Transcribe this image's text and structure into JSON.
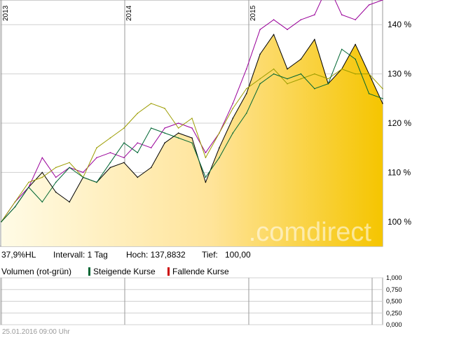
{
  "chart_data": {
    "type": "line",
    "year_labels": [
      "2013",
      "2014",
      "2015"
    ],
    "y_ticks": [
      "100 %",
      "110 %",
      "120 %",
      "130 %",
      "140 %"
    ],
    "y_values": [
      100,
      110,
      120,
      130,
      140
    ],
    "ylim": [
      95,
      145
    ],
    "grid": true,
    "watermark": ".comdirect",
    "series": [
      {
        "color": "#000000",
        "values": [
          100,
          103,
          107,
          110,
          106,
          104,
          109,
          108,
          111,
          112,
          109,
          111,
          116,
          118,
          117,
          108,
          115,
          121,
          126,
          134,
          138,
          131,
          133,
          137,
          128,
          131,
          136,
          130,
          124
        ]
      },
      {
        "color": "#990099",
        "values": [
          100,
          104,
          107,
          113,
          109,
          111,
          110,
          113,
          114,
          113,
          116,
          115,
          119,
          120,
          119,
          114,
          118,
          124,
          131,
          139,
          141,
          139,
          141,
          142,
          148,
          142,
          141,
          144,
          145
        ]
      },
      {
        "color": "#9c9c00",
        "values": [
          100,
          104,
          108,
          109,
          111,
          112,
          109,
          115,
          117,
          119,
          122,
          124,
          123,
          119,
          121,
          113,
          118,
          123,
          127,
          129,
          131,
          128,
          129,
          130,
          129,
          131,
          130,
          130,
          127
        ]
      },
      {
        "color": "#006633",
        "values": [
          100,
          103,
          107,
          104,
          108,
          111,
          109,
          108,
          112,
          116,
          114,
          119,
          118,
          117,
          116,
          109,
          113,
          118,
          122,
          128,
          130,
          129,
          130,
          127,
          128,
          135,
          133,
          126,
          125
        ]
      },
      {
        "color": "#f5c500",
        "area": true,
        "values": [
          100,
          103,
          107,
          110,
          106,
          104,
          109,
          108,
          111,
          112,
          109,
          111,
          116,
          118,
          117,
          108,
          115,
          121,
          126,
          134,
          138,
          131,
          133,
          137,
          128,
          131,
          136,
          130,
          124
        ]
      }
    ]
  },
  "info": {
    "performance": "37,9%HL",
    "interval_label": "Intervall: 1 Tag",
    "high_label": "Hoch: 137,8832",
    "low_label": "Tief:",
    "low_value": "100,00"
  },
  "volume": {
    "title": "Volumen (rot-grün)",
    "rising_label": "Steigende Kurse",
    "falling_label": "Fallende Kurse",
    "rising_color": "#006633",
    "falling_color": "#cc0000",
    "y_ticks": [
      "1,000",
      "0,750",
      "0,500",
      "0,250",
      "0,000"
    ],
    "y_values": [
      1.0,
      0.75,
      0.5,
      0.25,
      0.0
    ]
  },
  "footer": "25.01.2016 09:00 Uhr"
}
